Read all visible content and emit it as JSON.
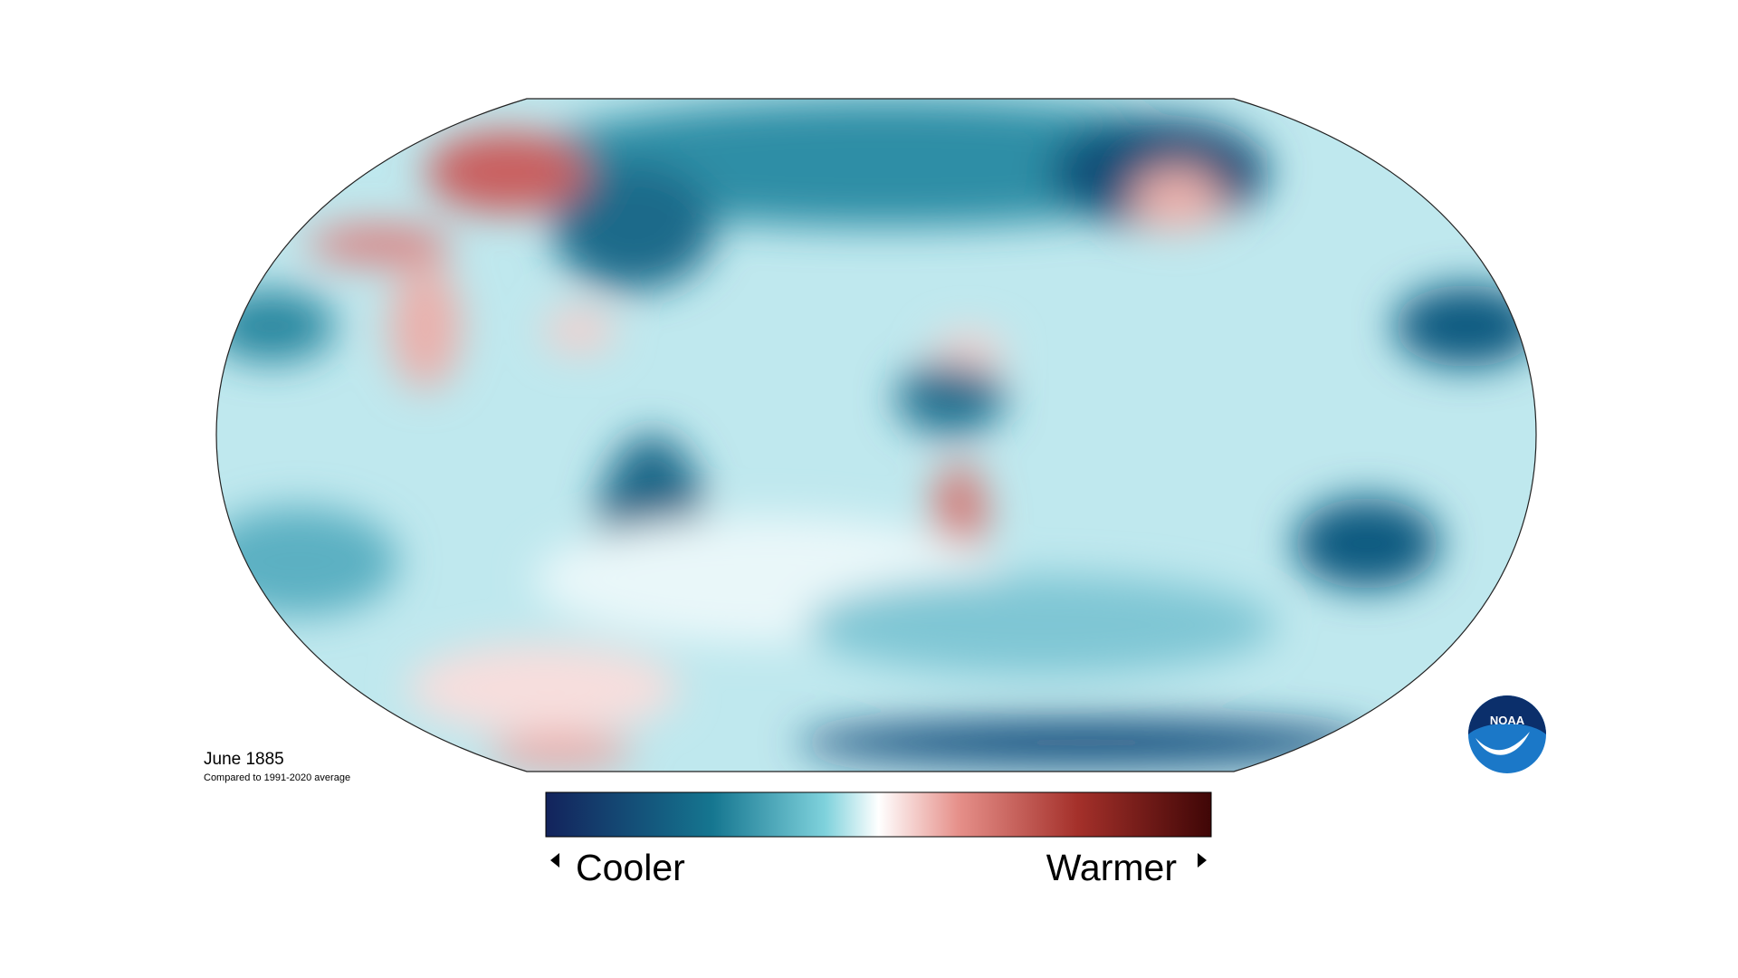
{
  "map": {
    "title": "June 1885",
    "subtitle": "Compared to 1991-2020 average"
  },
  "legend": {
    "low": "Cooler",
    "high": "Warmer"
  },
  "logo": "NOAA"
}
